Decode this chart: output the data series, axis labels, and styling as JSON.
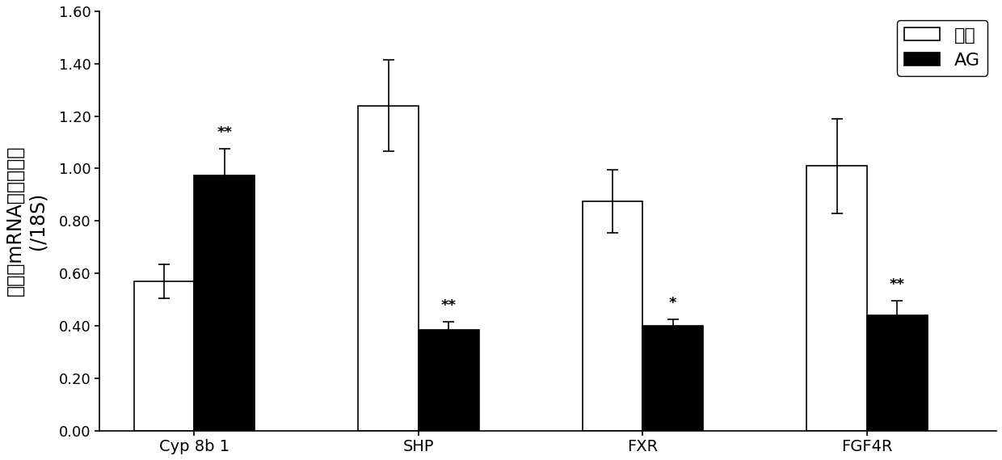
{
  "categories": [
    "Cyp 8b 1",
    "SHP",
    "FXR",
    "FGF4R"
  ],
  "control_values": [
    0.57,
    1.24,
    0.875,
    1.01
  ],
  "ag_values": [
    0.975,
    0.385,
    0.4,
    0.44
  ],
  "control_errors": [
    0.065,
    0.175,
    0.12,
    0.18
  ],
  "ag_errors": [
    0.1,
    0.03,
    0.025,
    0.055
  ],
  "control_color": "#FFFFFF",
  "ag_color": "#000000",
  "bar_edgecolor": "#000000",
  "ylabel_line1": "相对的mRNA表达量水平",
  "ylabel_line2": "(/18S)",
  "ylim": [
    0,
    1.6
  ],
  "yticks": [
    0.0,
    0.2,
    0.4,
    0.6,
    0.8,
    1.0,
    1.2,
    1.4,
    1.6
  ],
  "legend_label_control": "对照",
  "legend_label_ag": "AG",
  "significance_ag": [
    "**",
    "**",
    "*",
    "**"
  ],
  "bar_width": 0.35,
  "figsize": [
    12.4,
    5.69
  ],
  "dpi": 100,
  "fontsize_ylabel": 17,
  "fontsize_ticks": 13,
  "fontsize_xticks": 14,
  "fontsize_significance": 13,
  "fontsize_legend": 16
}
